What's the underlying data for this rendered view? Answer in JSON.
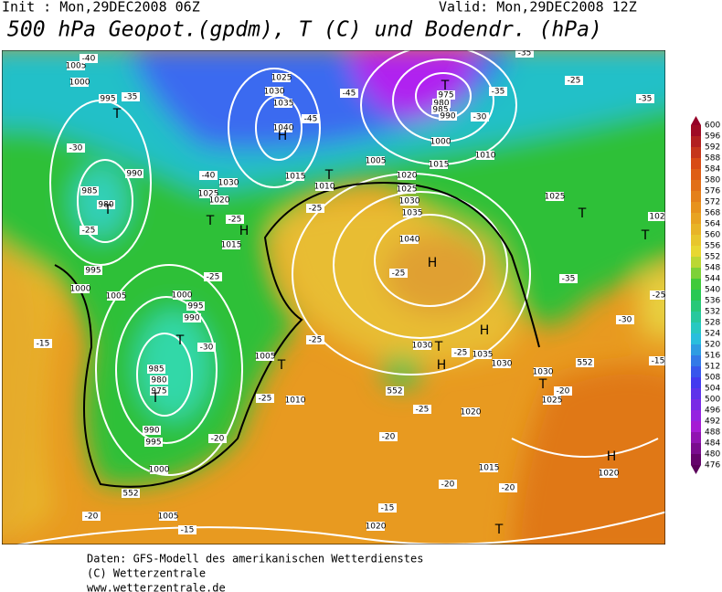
{
  "header": {
    "init": "Init : Mon,29DEC2008 06Z",
    "valid": "Valid: Mon,29DEC2008 12Z",
    "title": "500 hPa Geopot.(gpdm), T (C) und Bodendr. (hPa)"
  },
  "legend": {
    "levels": [
      476,
      480,
      484,
      488,
      492,
      496,
      500,
      504,
      508,
      512,
      516,
      520,
      524,
      528,
      532,
      536,
      540,
      544,
      548,
      552,
      556,
      560,
      564,
      568,
      572,
      576,
      580,
      584,
      588,
      592,
      596,
      600
    ]
  },
  "map_labels": [
    "1005",
    "1000",
    "995",
    "-35",
    "T",
    "-40",
    "-30",
    "990",
    "985",
    "980",
    "T",
    "-25",
    "995",
    "1000",
    "1005",
    "1000",
    "995",
    "990",
    "T",
    "-30",
    "985",
    "980",
    "975",
    "T",
    "990",
    "995",
    "1000",
    "552",
    "-20",
    "1005",
    "-15",
    "-15",
    "-25",
    "-20",
    "-25",
    "1010",
    "1005",
    "T",
    "-25",
    "1015",
    "H",
    "T",
    "-25",
    "1030",
    "1025",
    "1020",
    "-40",
    "1040",
    "1035",
    "1030",
    "1025",
    "H",
    "-45",
    "1015",
    "T",
    "1010",
    "1020",
    "1005",
    "-45",
    "975",
    "980",
    "985",
    "990",
    "1000",
    "T",
    "-35",
    "-30",
    "1015",
    "1010",
    "-35",
    "-25",
    "-35",
    "1025",
    "T",
    "102",
    "T",
    "-35",
    "-30",
    "-25",
    "1025",
    "1030",
    "1035",
    "1040",
    "H",
    "-25",
    "-25",
    "1030",
    "T",
    "H",
    "-25",
    "1035",
    "1030",
    "H",
    "1030",
    "T",
    "552",
    "1025",
    "-20",
    "552",
    "1020",
    "-25",
    "-20",
    "1015",
    "H",
    "1020",
    "-20",
    "-20",
    "-15",
    "1020",
    "T",
    "-15"
  ],
  "footer": [
    "Daten: GFS-Modell des amerikanischen Wetterdienstes",
    "(C) Wetterzentrale",
    "www.wetterzentrale.de"
  ]
}
